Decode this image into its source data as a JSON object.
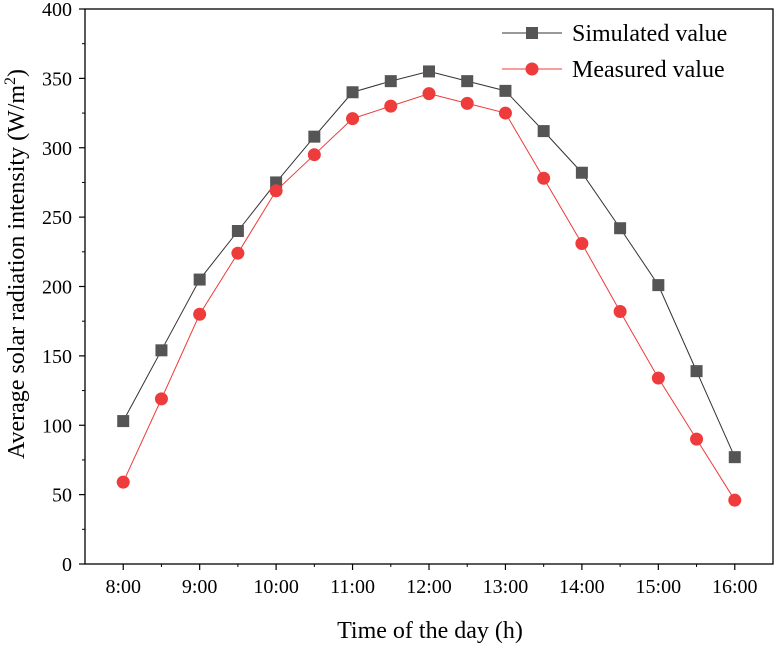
{
  "chart_data": {
    "type": "line",
    "title": "",
    "xlabel": "Time of the day (h)",
    "ylabel": "Average solar radiation intensity (W/m²)",
    "ylabel_base": "Average solar radiation intensity (W/m",
    "ylabel_sup": "2",
    "ylabel_close": ")",
    "ylim": [
      0,
      400
    ],
    "xlim": [
      7.5,
      16.5
    ],
    "y_ticks": [
      0,
      50,
      100,
      150,
      200,
      250,
      300,
      350,
      400
    ],
    "x_ticks": [
      {
        "value": 8,
        "label": "8:00"
      },
      {
        "value": 9,
        "label": "9:00"
      },
      {
        "value": 10,
        "label": "10:00"
      },
      {
        "value": 11,
        "label": "11:00"
      },
      {
        "value": 12,
        "label": "12:00"
      },
      {
        "value": 13,
        "label": "13:00"
      },
      {
        "value": 14,
        "label": "14:00"
      },
      {
        "value": 15,
        "label": "15:00"
      },
      {
        "value": 16,
        "label": "16:00"
      }
    ],
    "x": [
      8,
      8.5,
      9,
      9.5,
      10,
      10.5,
      11,
      11.5,
      12,
      12.5,
      13,
      13.5,
      14,
      14.5,
      15,
      15.5,
      16
    ],
    "legend_position": "top-right",
    "grid": false,
    "series": [
      {
        "name": "Simulated value",
        "marker": "square",
        "color": "#555555",
        "line_color": "#333333",
        "values": [
          103,
          154,
          205,
          240,
          275,
          308,
          340,
          348,
          355,
          348,
          341,
          312,
          282,
          242,
          201,
          139,
          77
        ]
      },
      {
        "name": "Measured value",
        "marker": "circle",
        "color": "#ee3b3b",
        "line_color": "#ee3b3b",
        "values": [
          59,
          119,
          180,
          224,
          269,
          295,
          321,
          330,
          339,
          332,
          325,
          278,
          231,
          182,
          134,
          90,
          46
        ]
      }
    ]
  }
}
